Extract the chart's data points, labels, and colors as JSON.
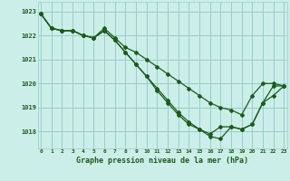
{
  "title": "Graphe pression niveau de la mer (hPa)",
  "background_color": "#cceee8",
  "grid_color": "#99cccc",
  "line_color": "#1a5c1a",
  "x_labels": [
    "0",
    "1",
    "2",
    "3",
    "4",
    "5",
    "6",
    "7",
    "8",
    "9",
    "10",
    "11",
    "12",
    "13",
    "14",
    "15",
    "16",
    "17",
    "18",
    "19",
    "20",
    "21",
    "22",
    "23"
  ],
  "ylim": [
    1017.3,
    1023.4
  ],
  "xlim": [
    -0.3,
    23.3
  ],
  "yticks": [
    1018,
    1019,
    1020,
    1021,
    1022,
    1023
  ],
  "series1": [
    1022.9,
    1022.3,
    1022.2,
    1022.2,
    1022.0,
    1021.9,
    1022.3,
    1021.9,
    1021.5,
    1021.3,
    1021.0,
    1020.7,
    1020.4,
    1020.1,
    1019.8,
    1019.5,
    1019.2,
    1019.0,
    1018.9,
    1018.7,
    1019.5,
    1020.0,
    1020.0,
    1019.9
  ],
  "series2": [
    1022.9,
    1022.3,
    1022.2,
    1022.2,
    1022.0,
    1021.9,
    1022.2,
    1021.8,
    1021.3,
    1020.8,
    1020.3,
    1019.8,
    1019.3,
    1018.8,
    1018.4,
    1018.1,
    1017.9,
    1018.2,
    1018.2,
    1018.1,
    1018.3,
    1019.2,
    1019.9,
    1019.9
  ],
  "series3": [
    1022.9,
    1022.3,
    1022.2,
    1022.2,
    1022.0,
    1021.9,
    1022.2,
    1021.8,
    1021.3,
    1020.8,
    1020.3,
    1019.7,
    1019.2,
    1018.7,
    1018.3,
    1018.1,
    1017.8,
    1017.7,
    1018.2,
    1018.1,
    1018.3,
    1019.2,
    1019.5,
    1019.9
  ]
}
